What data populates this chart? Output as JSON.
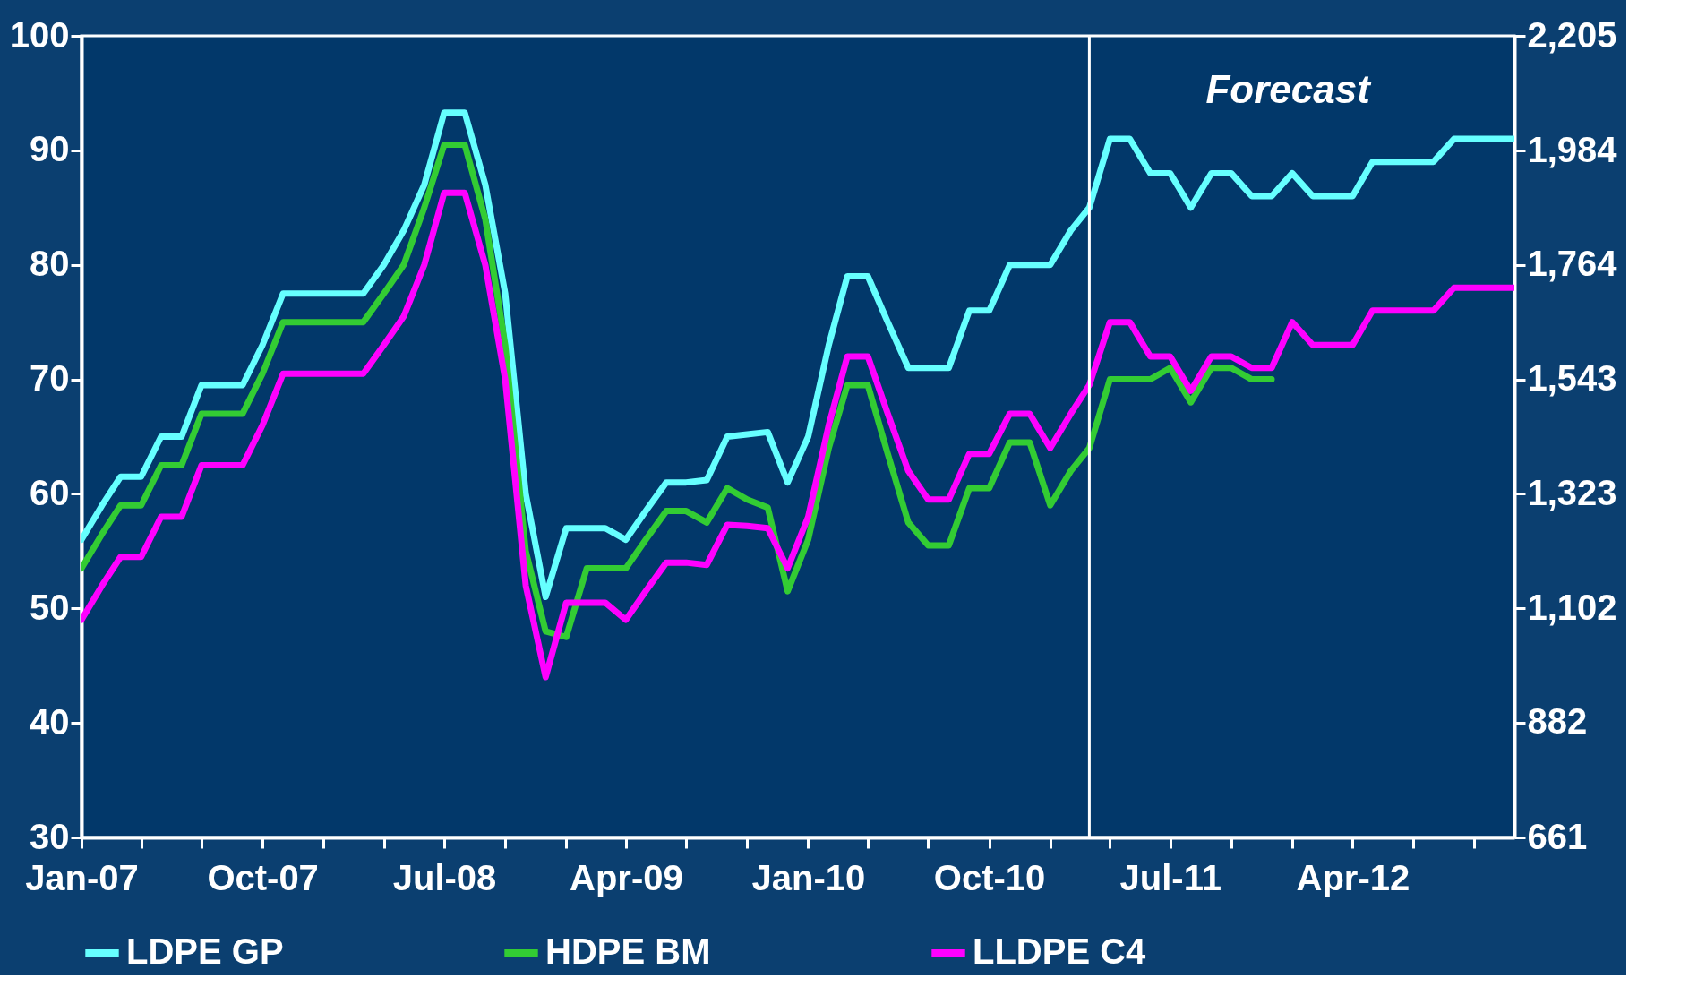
{
  "chart_data": {
    "type": "line",
    "x": [
      "2007-01",
      "2007-02",
      "2007-03",
      "2007-04",
      "2007-05",
      "2007-06",
      "2007-07",
      "2007-08",
      "2007-09",
      "2007-10",
      "2007-11",
      "2007-12",
      "2008-01",
      "2008-02",
      "2008-03",
      "2008-04",
      "2008-05",
      "2008-06",
      "2008-07",
      "2008-08",
      "2008-09",
      "2008-10",
      "2008-11",
      "2008-12",
      "2009-01",
      "2009-02",
      "2009-03",
      "2009-04",
      "2009-05",
      "2009-06",
      "2009-07",
      "2009-08",
      "2009-09",
      "2009-10",
      "2009-11",
      "2009-12",
      "2010-01",
      "2010-02",
      "2010-03",
      "2010-04",
      "2010-05",
      "2010-06",
      "2010-07",
      "2010-08",
      "2010-09",
      "2010-10",
      "2010-11",
      "2010-12",
      "2011-01",
      "2011-02",
      "2011-03",
      "2011-04",
      "2011-05",
      "2011-06",
      "2011-07",
      "2011-08",
      "2011-09",
      "2011-10",
      "2011-11",
      "2011-12",
      "2012-01",
      "2012-02",
      "2012-03",
      "2012-04",
      "2012-05",
      "2012-06",
      "2012-07",
      "2012-08",
      "2012-09",
      "2012-10",
      "2012-11",
      "2012-12"
    ],
    "series": [
      {
        "name": "LDPE GP",
        "color": "#66ffff",
        "values": [
          56,
          59,
          61.5,
          61.5,
          65,
          65,
          69.5,
          69.5,
          69.5,
          73,
          77.5,
          77.5,
          77.5,
          77.5,
          77.5,
          80,
          83,
          87,
          93.3,
          93.3,
          87,
          77.5,
          60,
          51,
          57,
          57,
          57,
          56,
          58.5,
          61,
          61,
          61.2,
          65,
          65.2,
          65.4,
          61,
          65,
          73,
          79,
          79,
          75,
          71,
          71,
          71,
          76,
          76,
          80,
          80,
          80,
          83,
          85,
          91,
          91,
          88,
          88,
          85,
          88,
          88,
          86,
          86,
          88,
          86,
          86,
          86,
          89,
          89,
          89,
          89,
          91,
          91,
          91,
          91
        ]
      },
      {
        "name": "HDPE BM",
        "color": "#33cc33",
        "values": [
          53.5,
          56.5,
          59,
          59,
          62.5,
          62.5,
          67,
          67,
          67,
          70.5,
          75,
          75,
          75,
          75,
          75,
          77.5,
          80,
          85,
          90.5,
          90.5,
          84,
          73,
          55,
          48,
          47.5,
          53.5,
          53.5,
          53.5,
          56,
          58.5,
          58.5,
          57.5,
          60.5,
          59.5,
          58.8,
          51.5,
          56,
          64,
          69.5,
          69.5,
          63.5,
          57.5,
          55.5,
          55.5,
          60.5,
          60.5,
          64.5,
          64.5,
          59,
          62,
          64,
          70,
          70,
          70,
          71,
          68,
          71,
          71,
          70,
          70,
          null,
          null,
          null,
          null,
          null,
          null,
          null,
          null,
          null,
          null,
          null,
          null
        ]
      },
      {
        "name": "LLDPE C4",
        "color": "#ff00ff",
        "values": [
          49,
          52,
          54.5,
          54.5,
          58,
          58,
          62.5,
          62.5,
          62.5,
          66,
          70.5,
          70.5,
          70.5,
          70.5,
          70.5,
          73,
          75.5,
          80,
          86.3,
          86.3,
          80,
          70,
          52,
          44,
          50.5,
          50.5,
          50.5,
          49,
          51.5,
          54,
          54,
          53.8,
          57.3,
          57.2,
          57,
          53.5,
          58,
          66,
          72,
          72,
          67,
          62,
          59.5,
          59.5,
          63.5,
          63.5,
          67,
          67,
          64,
          67,
          69.5,
          75,
          75,
          72,
          72,
          69,
          72,
          72,
          71,
          71,
          75,
          73,
          73,
          73,
          76,
          76,
          76,
          76,
          78,
          78,
          78,
          78
        ]
      }
    ],
    "xlim": [
      "2007-01",
      "2012-12"
    ],
    "xticks": [
      {
        "value": "2007-01",
        "label": "Jan-07"
      },
      {
        "value": "2007-04",
        "label": null
      },
      {
        "value": "2007-07",
        "label": null
      },
      {
        "value": "2007-10",
        "label": "Oct-07"
      },
      {
        "value": "2008-01",
        "label": null
      },
      {
        "value": "2008-04",
        "label": null
      },
      {
        "value": "2008-07",
        "label": "Jul-08"
      },
      {
        "value": "2008-10",
        "label": null
      },
      {
        "value": "2009-01",
        "label": null
      },
      {
        "value": "2009-04",
        "label": "Apr-09"
      },
      {
        "value": "2009-07",
        "label": null
      },
      {
        "value": "2009-10",
        "label": null
      },
      {
        "value": "2010-01",
        "label": "Jan-10"
      },
      {
        "value": "2010-04",
        "label": null
      },
      {
        "value": "2010-07",
        "label": null
      },
      {
        "value": "2010-10",
        "label": "Oct-10"
      },
      {
        "value": "2011-01",
        "label": null
      },
      {
        "value": "2011-04",
        "label": null
      },
      {
        "value": "2011-07",
        "label": "Jul-11"
      },
      {
        "value": "2011-10",
        "label": null
      },
      {
        "value": "2012-01",
        "label": null
      },
      {
        "value": "2012-04",
        "label": "Apr-12"
      },
      {
        "value": "2012-07",
        "label": null
      },
      {
        "value": "2012-10",
        "label": null
      }
    ],
    "ylim": [
      30,
      100
    ],
    "yticks": [
      30,
      40,
      50,
      60,
      70,
      80,
      90,
      100
    ],
    "y2lim": [
      661,
      2205
    ],
    "y2ticks": [
      {
        "value": 661,
        "label": "661"
      },
      {
        "value": 882,
        "label": "882"
      },
      {
        "value": 1102,
        "label": "1,102"
      },
      {
        "value": 1323,
        "label": "1,323"
      },
      {
        "value": 1543,
        "label": "1,543"
      },
      {
        "value": 1764,
        "label": "1,764"
      },
      {
        "value": 1984,
        "label": "1,984"
      },
      {
        "value": 2205,
        "label": "2,205"
      }
    ],
    "ref_lines": [
      {
        "axis": "x",
        "value": "2011-03",
        "label": "Forecast",
        "color": "#ffffff"
      }
    ],
    "legend": "bottom",
    "grid": false,
    "marker": "none",
    "line_style": "solid"
  }
}
